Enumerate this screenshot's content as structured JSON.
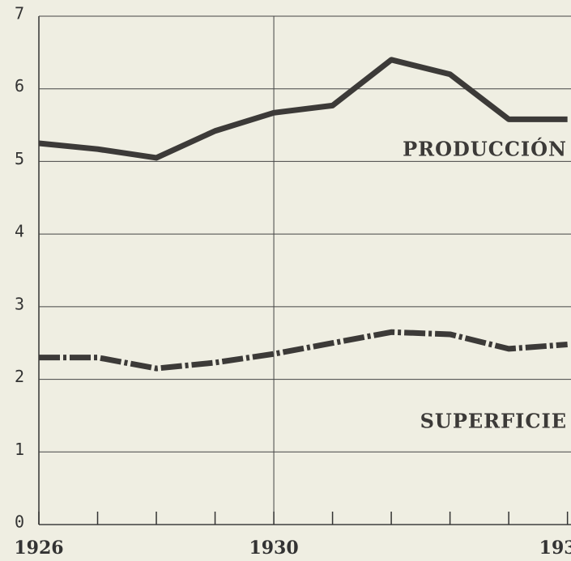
{
  "chart_data": {
    "type": "line",
    "x": [
      1926,
      1927,
      1928,
      1929,
      1930,
      1931,
      1932,
      1933,
      1934,
      1935
    ],
    "series": [
      {
        "name": "PRODUCCIÓN",
        "color": "#3c3a38",
        "style": "solid",
        "values": [
          5.25,
          5.17,
          5.05,
          5.42,
          5.67,
          5.77,
          6.4,
          6.2,
          5.58,
          5.58
        ]
      },
      {
        "name": "SUPERFICIE",
        "color": "#3c3a38",
        "style": "dashdot",
        "values": [
          2.3,
          2.3,
          2.15,
          2.23,
          2.35,
          2.5,
          2.65,
          2.62,
          2.42,
          2.48
        ]
      }
    ],
    "xlim": [
      1926,
      1935.06
    ],
    "ylim": [
      0,
      7
    ],
    "yticks": [
      0,
      1,
      2,
      3,
      4,
      5,
      6,
      7
    ],
    "xticks": [
      1926,
      1927,
      1928,
      1929,
      1930,
      1931,
      1932,
      1933,
      1934,
      1935
    ],
    "xlabels": [
      1926,
      1930,
      {
        "value": 1935,
        "label": "193"
      }
    ],
    "xgrid": [
      1930
    ],
    "grid": true
  }
}
